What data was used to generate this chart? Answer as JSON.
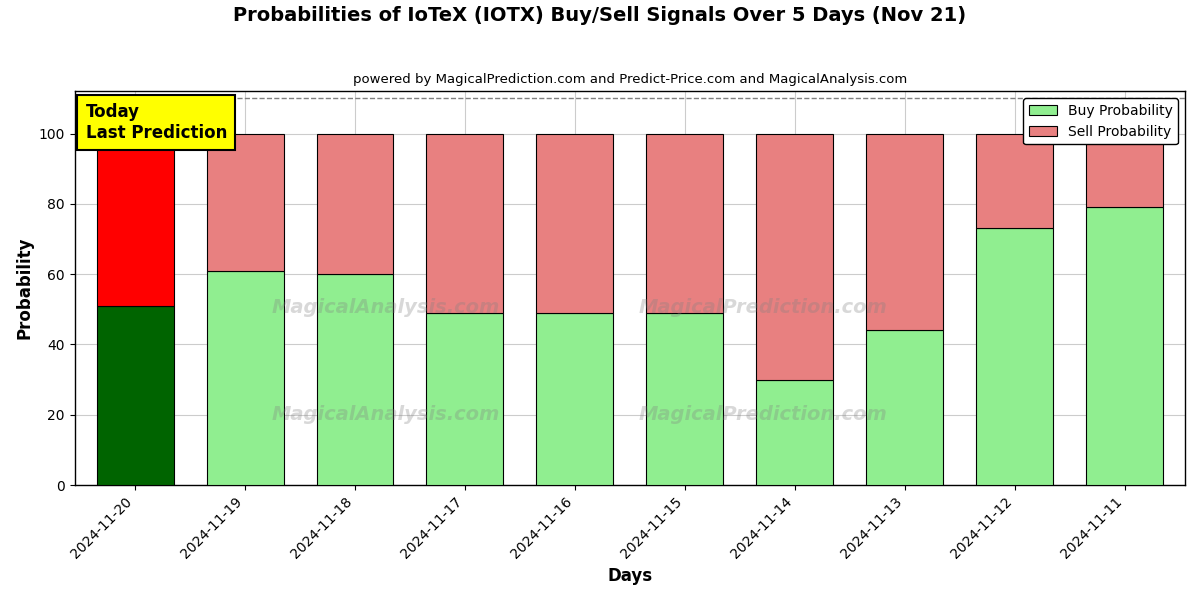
{
  "title": "Probabilities of IoTeX (IOTX) Buy/Sell Signals Over 5 Days (Nov 21)",
  "subtitle": "powered by MagicalPrediction.com and Predict-Price.com and MagicalAnalysis.com",
  "xlabel": "Days",
  "ylabel": "Probability",
  "dates": [
    "2024-11-20",
    "2024-11-19",
    "2024-11-18",
    "2024-11-17",
    "2024-11-16",
    "2024-11-15",
    "2024-11-14",
    "2024-11-13",
    "2024-11-12",
    "2024-11-11"
  ],
  "buy_values": [
    51,
    61,
    60,
    49,
    49,
    49,
    30,
    44,
    73,
    79
  ],
  "sell_values": [
    49,
    39,
    40,
    51,
    51,
    51,
    70,
    56,
    27,
    21
  ],
  "today_buy_color": "#006400",
  "today_sell_color": "#ff0000",
  "buy_color": "#90EE90",
  "sell_color": "#E88080",
  "today_annotation_bg": "#ffff00",
  "today_annotation_text": "Today\nLast Prediction",
  "ylim": [
    0,
    112
  ],
  "yticks": [
    0,
    20,
    40,
    60,
    80,
    100
  ],
  "dashed_line_y": 110,
  "legend_buy_label": "Buy Probability",
  "legend_sell_label": "Sell Probability",
  "bar_width": 0.7,
  "edgecolor": "black",
  "linewidth": 0.8,
  "background_color": "#ffffff",
  "grid_color": "#cccccc",
  "fig_width": 12,
  "fig_height": 6
}
